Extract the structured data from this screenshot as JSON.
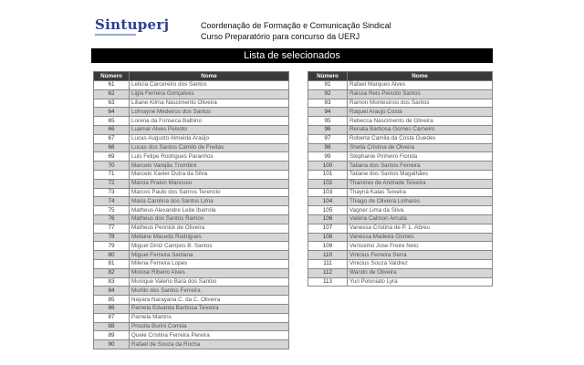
{
  "header": {
    "logo": "Sintuperj",
    "title_line1": "Coordenação de Formação e Comunicação Sindical",
    "title_line2": "Curso Preparatório para concurso da UERJ",
    "banner": "Lista de selecionados"
  },
  "columns": {
    "number": "Número",
    "name": "Nome"
  },
  "left_rows": [
    [
      "61",
      "Leticia Carcereiro dos Santos"
    ],
    [
      "62",
      "Ligia Ferreira Gonçalves"
    ],
    [
      "63",
      "Liliane Kilma Nascimento Oliveira"
    ],
    [
      "64",
      "Lohrayne Medeiros dos Santos"
    ],
    [
      "65",
      "Lorena da Fonseca Balbino"
    ],
    [
      "66",
      "Luamar Alves Peixoto"
    ],
    [
      "67",
      "Lucas Augusto Almeida Araújo"
    ],
    [
      "68",
      "Lucas dos Santos Camilo de Freitas"
    ],
    [
      "69",
      "Luis Felipe Rodrigues Paranhos"
    ],
    [
      "70",
      "Marcelo Varejão Trombini"
    ],
    [
      "71",
      "Marcelo Xavier Dutra da Silva"
    ],
    [
      "72",
      "Marcia Pralon Mancuso"
    ],
    [
      "73",
      "Marcos Paulo dos Sanros Terencio"
    ],
    [
      "74",
      "Maria Carolina dos Santos Lima"
    ],
    [
      "75",
      "Matheus Alexandre Leite Ibarrola"
    ],
    [
      "76",
      "Matheus dos Santos Ramos"
    ],
    [
      "77",
      "Matheus Pennick de Oliveira"
    ],
    [
      "78",
      "Melaine Macedo Rodrigues"
    ],
    [
      "79",
      "Miguel Diniz Campos B. Santos"
    ],
    [
      "80",
      "Miguel Ferreira Santana"
    ],
    [
      "81",
      "Milena Ferreira Lopes"
    ],
    [
      "82",
      "Monise Ribeiro Alves"
    ],
    [
      "83",
      "Munique Valerio Bara dos Santos"
    ],
    [
      "84",
      "Murillo dos Santos Ferreira"
    ],
    [
      "85",
      "Nayara Narayana C. da C. Oliveira"
    ],
    [
      "86",
      "Pamela Eduarda Barbosa Teixeira"
    ],
    [
      "87",
      "Pamela Martins"
    ],
    [
      "88",
      "Priscila Burini Correia"
    ],
    [
      "89",
      "Quele Cristina Ferreira Pereira"
    ],
    [
      "90",
      "Rafael de Souza da Rocha"
    ]
  ],
  "right_rows": [
    [
      "91",
      "Rafael Marques Alves"
    ],
    [
      "92",
      "Raissa Reis Peixoto Santos"
    ],
    [
      "93",
      "Ramon Montesinos dos Santos"
    ],
    [
      "94",
      "Raquel Araujo Costa"
    ],
    [
      "95",
      "Rebecca Nascimento de Oliveira"
    ],
    [
      "96",
      "Renata Barbosa Gomes Carneiro"
    ],
    [
      "97",
      "Roberta Camila da Costa Guedes"
    ],
    [
      "98",
      "Shella Cristina de Olveira"
    ],
    [
      "99",
      "Stephanie Pinheiro Fionda"
    ],
    [
      "100",
      "Tatiana dos Santos Ferreira"
    ],
    [
      "101",
      "Tatiane dos Santos Magalhães"
    ],
    [
      "102",
      "Thamires de Andrade Teixeira"
    ],
    [
      "103",
      "Thayná Kalas Teixeira"
    ],
    [
      "104",
      "Thiago de Oliveira Linhares"
    ],
    [
      "105",
      "Vagner Lima da Silva"
    ],
    [
      "106",
      "Valéria Calmon Arruda"
    ],
    [
      "107",
      "Vanessa Cristina de P. L. Abreu"
    ],
    [
      "108",
      "Vanessa Madeira Gomes"
    ],
    [
      "109",
      "Verissimo Jose Freire Neto"
    ],
    [
      "110",
      "Vinicius Ferreira Serra"
    ],
    [
      "111",
      "Vinicius Souza Valdrez"
    ],
    [
      "112",
      "Wando de Oliveira"
    ],
    [
      "113",
      "Yuri Poloniato Lyra"
    ]
  ]
}
